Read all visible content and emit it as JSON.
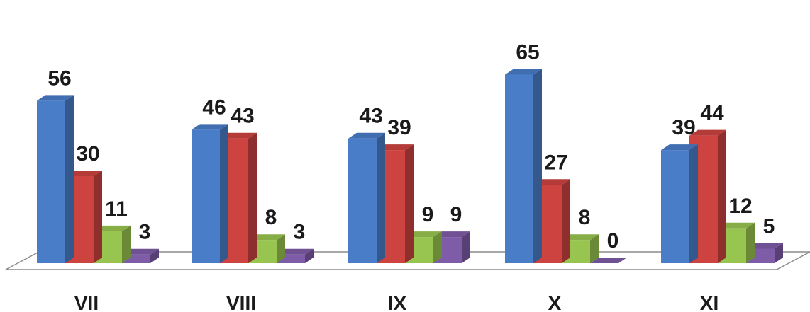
{
  "chart_data": {
    "type": "bar",
    "categories": [
      "VII",
      "VIII",
      "IX",
      "X",
      "XI"
    ],
    "series": [
      {
        "values": [
          56,
          46,
          43,
          65,
          39
        ],
        "color": "#4a7dc8"
      },
      {
        "values": [
          30,
          43,
          39,
          27,
          44
        ],
        "color": "#cc4340"
      },
      {
        "values": [
          11,
          8,
          9,
          8,
          12
        ],
        "color": "#98c54f"
      },
      {
        "values": [
          3,
          3,
          9,
          0,
          5
        ],
        "color": "#7e5ca8"
      }
    ],
    "title": "",
    "xlabel": "",
    "ylabel": "",
    "ylim": [
      0,
      70
    ],
    "grid": false,
    "legend": "none",
    "style": "3d-clustered-bar"
  }
}
